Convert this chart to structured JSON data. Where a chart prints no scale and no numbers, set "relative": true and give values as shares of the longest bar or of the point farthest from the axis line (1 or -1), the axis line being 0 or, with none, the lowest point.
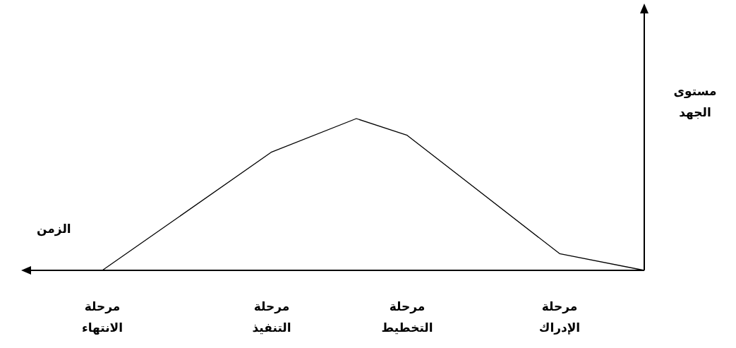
{
  "chart_data": {
    "type": "line",
    "relative": true,
    "xlabel": "الزمن",
    "ylabel": "مستوى\nالجهد",
    "categories": [
      "مرحلة\nالانتهاء",
      null,
      null,
      null,
      null,
      null,
      null,
      null,
      null,
      null,
      "مرحلة\nالتنفيذ",
      null,
      null,
      null,
      null,
      null,
      null,
      null,
      "مرحلة\nالتخطيط",
      null,
      null,
      null,
      null,
      null,
      null,
      null,
      null,
      "مرحلة\nالإدراك",
      null,
      null,
      null,
      null,
      null
    ],
    "series": [
      {
        "color": "#000000",
        "values": [
          0,
          null,
          null,
          null,
          null,
          null,
          null,
          null,
          null,
          null,
          0.78,
          null,
          null,
          null,
          null,
          1,
          null,
          null,
          0.89,
          null,
          null,
          null,
          null,
          null,
          null,
          null,
          null,
          0.11,
          null,
          null,
          null,
          null,
          0
        ]
      }
    ]
  }
}
